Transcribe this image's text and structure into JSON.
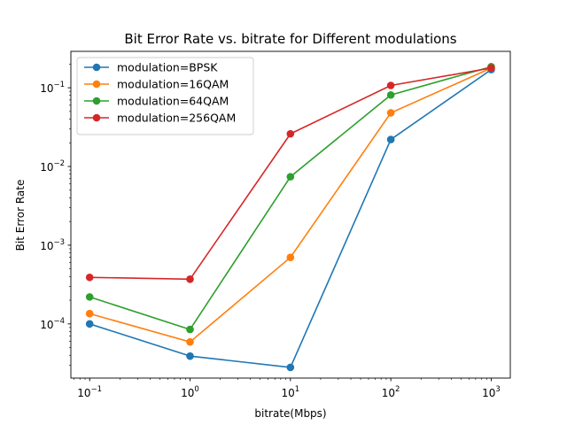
{
  "chart_data": {
    "type": "line",
    "title": "Bit Error Rate vs. bitrate for Different modulations",
    "xlabel": "bitrate(Mbps)",
    "ylabel": "Bit Error Rate",
    "xscale": "log",
    "yscale": "log",
    "xlim": [
      0.065,
      1550
    ],
    "ylim": [
      2.05e-05,
      0.29
    ],
    "grid": false,
    "legend_position": "top-left",
    "x": [
      0.1,
      1,
      10,
      100,
      1000
    ],
    "x_tick_labels": [
      {
        "base": "10",
        "exp": "−1"
      },
      {
        "base": "10",
        "exp": "0"
      },
      {
        "base": "10",
        "exp": "1"
      },
      {
        "base": "10",
        "exp": "2"
      },
      {
        "base": "10",
        "exp": "3"
      }
    ],
    "y_ticks": [
      0.0001,
      0.001,
      0.01,
      0.1
    ],
    "y_tick_labels": [
      {
        "base": "10",
        "exp": "−4"
      },
      {
        "base": "10",
        "exp": "−3"
      },
      {
        "base": "10",
        "exp": "−2"
      },
      {
        "base": "10",
        "exp": "−1"
      }
    ],
    "series": [
      {
        "name": "modulation=BPSK",
        "color": "#1f77b4",
        "values": [
          0.0001,
          3.9e-05,
          2.8e-05,
          0.022,
          0.17
        ]
      },
      {
        "name": "modulation=16QAM",
        "color": "#ff7f0e",
        "values": [
          0.000135,
          5.9e-05,
          0.0007,
          0.048,
          0.178
        ]
      },
      {
        "name": "modulation=64QAM",
        "color": "#2ca02c",
        "values": [
          0.00022,
          8.5e-05,
          0.0074,
          0.081,
          0.185
        ]
      },
      {
        "name": "modulation=256QAM",
        "color": "#d62728",
        "values": [
          0.00039,
          0.00037,
          0.026,
          0.107,
          0.178
        ]
      }
    ]
  }
}
